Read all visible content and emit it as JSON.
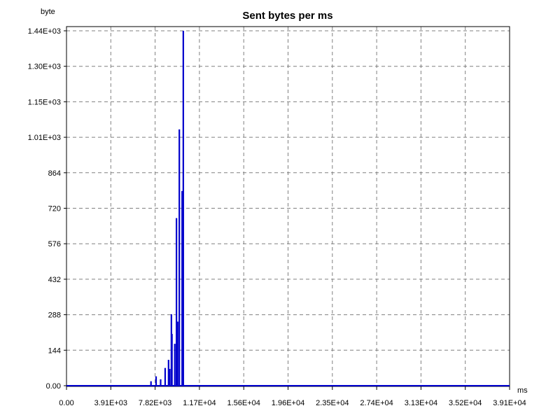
{
  "chart_data": {
    "type": "bar",
    "title": "Sent bytes per ms",
    "ylabel": "byte",
    "xlabel": "ms",
    "xlim": [
      0,
      39100
    ],
    "ylim": [
      0,
      1440
    ],
    "grid": true,
    "x_tick_labels": [
      "0.00",
      "3.91E+03",
      "7.82E+03",
      "1.17E+04",
      "1.56E+04",
      "1.96E+04",
      "2.35E+04",
      "2.74E+04",
      "3.13E+04",
      "3.52E+04",
      "3.91E+04"
    ],
    "y_tick_labels": [
      "0.00",
      "144",
      "288",
      "432",
      "576",
      "720",
      "864",
      "1.01E+03",
      "1.15E+03",
      "1.30E+03",
      "1.44E+03"
    ],
    "series_color": "#0000cc",
    "x": [
      7450,
      7900,
      8300,
      8700,
      9000,
      9100,
      9250,
      9300,
      9550,
      9700,
      9800,
      9950,
      10200,
      10300
    ],
    "values": [
      18,
      38,
      26,
      72,
      105,
      68,
      290,
      210,
      170,
      680,
      260,
      1040,
      790,
      1440
    ],
    "baseline": 0
  }
}
